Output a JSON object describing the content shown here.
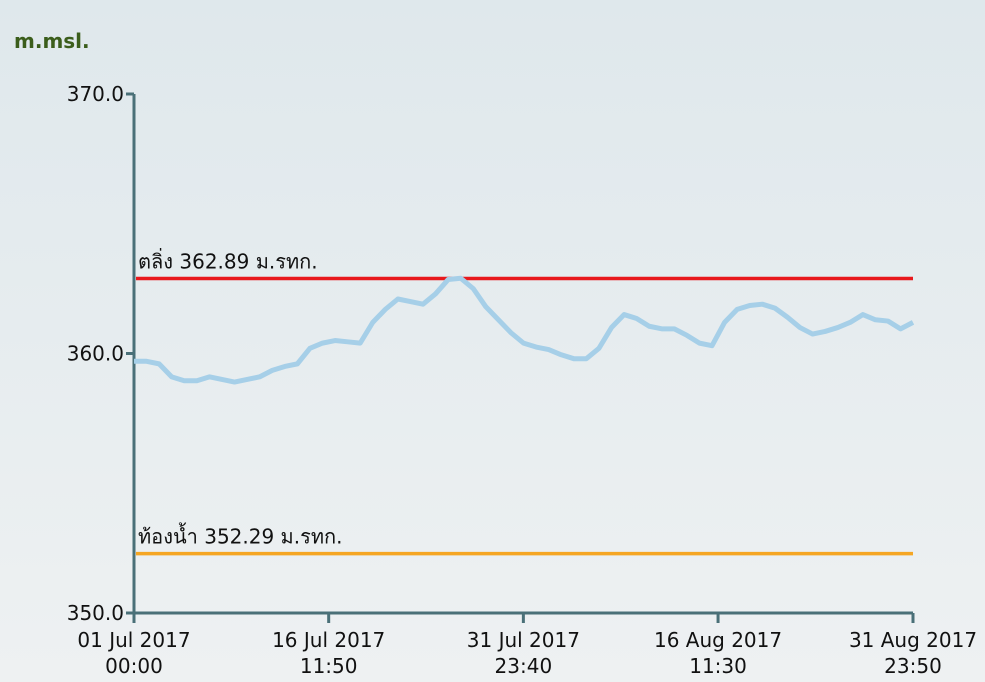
{
  "chart_data": {
    "type": "line",
    "y_axis_label": "m.msl.",
    "x": [
      "2017-07-01T00:00",
      "2017-07-02T00:00",
      "2017-07-03T00:00",
      "2017-07-04T00:00",
      "2017-07-05T00:00",
      "2017-07-06T00:00",
      "2017-07-07T00:00",
      "2017-07-08T00:00",
      "2017-07-09T00:00",
      "2017-07-10T00:00",
      "2017-07-11T00:00",
      "2017-07-12T00:00",
      "2017-07-13T00:00",
      "2017-07-14T00:00",
      "2017-07-15T00:00",
      "2017-07-16T00:00",
      "2017-07-17T00:00",
      "2017-07-18T00:00",
      "2017-07-19T00:00",
      "2017-07-20T00:00",
      "2017-07-21T00:00",
      "2017-07-22T00:00",
      "2017-07-23T00:00",
      "2017-07-24T00:00",
      "2017-07-25T00:00",
      "2017-07-26T00:00",
      "2017-07-27T00:00",
      "2017-07-28T00:00",
      "2017-07-29T00:00",
      "2017-07-30T00:00",
      "2017-07-31T00:00",
      "2017-08-01T00:00",
      "2017-08-02T00:00",
      "2017-08-03T00:00",
      "2017-08-04T00:00",
      "2017-08-05T00:00",
      "2017-08-06T00:00",
      "2017-08-07T00:00",
      "2017-08-08T00:00",
      "2017-08-09T00:00",
      "2017-08-10T00:00",
      "2017-08-11T00:00",
      "2017-08-12T00:00",
      "2017-08-13T00:00",
      "2017-08-14T00:00",
      "2017-08-15T00:00",
      "2017-08-16T00:00",
      "2017-08-17T00:00",
      "2017-08-18T00:00",
      "2017-08-19T00:00",
      "2017-08-20T00:00",
      "2017-08-21T00:00",
      "2017-08-22T00:00",
      "2017-08-23T00:00",
      "2017-08-24T00:00",
      "2017-08-25T00:00",
      "2017-08-26T00:00",
      "2017-08-27T00:00",
      "2017-08-28T00:00",
      "2017-08-29T00:00",
      "2017-08-30T00:00",
      "2017-08-31T00:00",
      "2017-08-31T23:50"
    ],
    "series": [
      {
        "color": "#a6cfe8",
        "values": [
          359.7,
          359.7,
          359.6,
          359.1,
          358.95,
          358.95,
          359.1,
          359.0,
          358.9,
          359.0,
          359.1,
          359.35,
          359.5,
          359.6,
          360.2,
          360.4,
          360.5,
          360.45,
          360.4,
          361.2,
          361.7,
          362.1,
          362.0,
          361.9,
          362.3,
          362.85,
          362.9,
          362.5,
          361.8,
          361.3,
          360.8,
          360.4,
          360.25,
          360.15,
          359.95,
          359.8,
          359.8,
          360.2,
          361.0,
          361.5,
          361.35,
          361.05,
          360.95,
          360.95,
          360.7,
          360.4,
          360.3,
          361.2,
          361.7,
          361.85,
          361.9,
          361.75,
          361.4,
          361.0,
          360.75,
          360.85,
          361.0,
          361.2,
          361.5,
          361.3,
          361.25,
          360.95,
          361.2
        ]
      }
    ],
    "xlim": [
      "2017-07-01T00:00",
      "2017-08-31T23:50"
    ],
    "xticks": [
      {
        "value": "2017-07-01T00:00",
        "label": "01 Jul 2017\n00:00"
      },
      {
        "value": "2017-07-16T11:50",
        "label": "16 Jul 2017\n11:50"
      },
      {
        "value": "2017-07-31T23:40",
        "label": "31 Jul 2017\n23:40"
      },
      {
        "value": "2017-08-16T11:30",
        "label": "16 Aug 2017\n11:30"
      },
      {
        "value": "2017-08-31T23:50",
        "label": "31 Aug 2017\n23:50"
      }
    ],
    "ylim": [
      350,
      370
    ],
    "yticks": [
      {
        "value": 350,
        "label": "350.0"
      },
      {
        "value": 360,
        "label": "360.0"
      },
      {
        "value": 370,
        "label": "370.0"
      }
    ],
    "reference_lines": [
      {
        "label": "ตลิ่ง 362.89 ม.รทก.",
        "value": 362.89,
        "color": "#e8191c"
      },
      {
        "label": "ท้องน้ำ 352.29 ม.รทก.",
        "value": 352.29,
        "color": "#f5a623"
      }
    ]
  }
}
